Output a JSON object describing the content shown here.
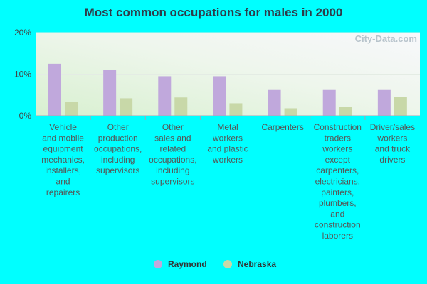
{
  "chart_data": {
    "type": "bar",
    "title": "Most common occupations for males in 2000",
    "categories": [
      "Vehicle and mobile equipment mechanics, installers, and repairers",
      "Other production occupations, including supervisors",
      "Other sales and related occupations, including supervisors",
      "Metal workers and plastic workers",
      "Carpenters",
      "Construction traders workers except carpenters, electricians, painters, plumbers, and construction laborers",
      "Driver/sales workers and truck drivers"
    ],
    "category_lines": [
      [
        "Vehicle",
        "and mobile",
        "equipment",
        "mechanics,",
        "installers,",
        "and",
        "repairers"
      ],
      [
        "Other",
        "production",
        "occupations,",
        "including",
        "supervisors"
      ],
      [
        "Other",
        "sales and",
        "related",
        "occupations,",
        "including",
        "supervisors"
      ],
      [
        "Metal",
        "workers",
        "and plastic",
        "workers"
      ],
      [
        "Carpenters"
      ],
      [
        "Construction",
        "traders",
        "workers",
        "except",
        "carpenters,",
        "electricians,",
        "painters,",
        "plumbers,",
        "and",
        "construction",
        "laborers"
      ],
      [
        "Driver/sales",
        "workers",
        "and truck",
        "drivers"
      ]
    ],
    "series": [
      {
        "name": "Raymond",
        "color": "#c0a8dc",
        "values": [
          12.5,
          11.0,
          9.5,
          9.5,
          6.2,
          6.2,
          6.2
        ]
      },
      {
        "name": "Nebraska",
        "color": "#c8d8a8",
        "values": [
          3.3,
          4.2,
          4.4,
          3.0,
          1.8,
          2.2,
          4.5
        ]
      }
    ],
    "ylim": [
      0,
      20
    ],
    "yticks": [
      0,
      10,
      20
    ],
    "ytick_labels": [
      "0%",
      "10%",
      "20%"
    ],
    "grid": true,
    "legend_position": "bottom-center"
  },
  "watermark": "City-Data.com"
}
